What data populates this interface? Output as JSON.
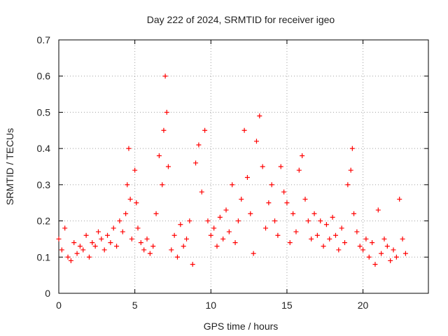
{
  "chart_data": {
    "type": "scatter",
    "title": "Day 222 of 2024, SRMTID for receiver igeo",
    "xlabel": "GPS time / hours",
    "ylabel": "SRMTID / TECUs",
    "xlim": [
      0,
      24.3
    ],
    "ylim": [
      0,
      0.7
    ],
    "x_ticks": [
      0,
      5,
      10,
      15,
      20
    ],
    "x_tick_labels": [
      "0",
      "5",
      "10",
      "15",
      "20"
    ],
    "y_ticks": [
      0,
      0.1,
      0.2,
      0.3,
      0.4,
      0.5,
      0.6,
      0.7
    ],
    "y_tick_labels": [
      "0",
      "0.1",
      "0.2",
      "0.3",
      "0.4",
      "0.5",
      "0.6",
      "0.7"
    ],
    "grid": true,
    "marker": "+",
    "series_color": "#ff0000",
    "grid_color": "#a0a0a0",
    "series": [
      {
        "name": "SRMTID",
        "x": [
          0.0,
          0.2,
          0.4,
          0.6,
          0.8,
          1.0,
          1.2,
          1.4,
          1.6,
          1.8,
          2.0,
          2.2,
          2.4,
          2.6,
          2.8,
          3.0,
          3.2,
          3.4,
          3.6,
          3.8,
          4.0,
          4.2,
          4.4,
          4.5,
          4.6,
          4.7,
          4.8,
          5.0,
          5.1,
          5.2,
          5.4,
          5.6,
          5.8,
          6.0,
          6.2,
          6.4,
          6.6,
          6.8,
          6.9,
          7.0,
          7.1,
          7.2,
          7.4,
          7.6,
          7.8,
          8.0,
          8.2,
          8.4,
          8.6,
          8.8,
          9.0,
          9.2,
          9.4,
          9.6,
          9.8,
          10.0,
          10.2,
          10.4,
          10.6,
          10.8,
          11.0,
          11.2,
          11.4,
          11.6,
          11.8,
          12.0,
          12.2,
          12.4,
          12.6,
          12.8,
          13.0,
          13.2,
          13.4,
          13.6,
          13.8,
          14.0,
          14.2,
          14.4,
          14.6,
          14.8,
          15.0,
          15.2,
          15.4,
          15.6,
          15.8,
          16.0,
          16.2,
          16.4,
          16.6,
          16.8,
          17.0,
          17.2,
          17.4,
          17.6,
          17.8,
          18.0,
          18.2,
          18.4,
          18.6,
          18.8,
          19.0,
          19.2,
          19.3,
          19.4,
          19.6,
          19.8,
          20.0,
          20.2,
          20.4,
          20.6,
          20.8,
          21.0,
          21.2,
          21.4,
          21.6,
          21.8,
          22.0,
          22.2,
          22.4,
          22.6,
          22.8
        ],
        "y": [
          0.15,
          0.12,
          0.18,
          0.1,
          0.09,
          0.14,
          0.11,
          0.13,
          0.12,
          0.16,
          0.1,
          0.14,
          0.13,
          0.17,
          0.15,
          0.12,
          0.16,
          0.14,
          0.18,
          0.13,
          0.2,
          0.17,
          0.22,
          0.3,
          0.4,
          0.26,
          0.15,
          0.34,
          0.25,
          0.18,
          0.14,
          0.12,
          0.15,
          0.11,
          0.13,
          0.22,
          0.38,
          0.3,
          0.45,
          0.6,
          0.5,
          0.35,
          0.12,
          0.16,
          0.1,
          0.19,
          0.13,
          0.15,
          0.2,
          0.08,
          0.36,
          0.41,
          0.28,
          0.45,
          0.2,
          0.16,
          0.18,
          0.13,
          0.21,
          0.15,
          0.23,
          0.17,
          0.3,
          0.14,
          0.2,
          0.26,
          0.45,
          0.32,
          0.22,
          0.11,
          0.42,
          0.49,
          0.35,
          0.18,
          0.25,
          0.3,
          0.2,
          0.16,
          0.35,
          0.28,
          0.25,
          0.14,
          0.22,
          0.17,
          0.34,
          0.38,
          0.26,
          0.2,
          0.15,
          0.22,
          0.16,
          0.2,
          0.13,
          0.19,
          0.15,
          0.21,
          0.16,
          0.12,
          0.18,
          0.14,
          0.3,
          0.34,
          0.4,
          0.22,
          0.17,
          0.13,
          0.12,
          0.15,
          0.1,
          0.14,
          0.08,
          0.23,
          0.11,
          0.15,
          0.13,
          0.09,
          0.12,
          0.1,
          0.26,
          0.15,
          0.11
        ]
      }
    ]
  }
}
